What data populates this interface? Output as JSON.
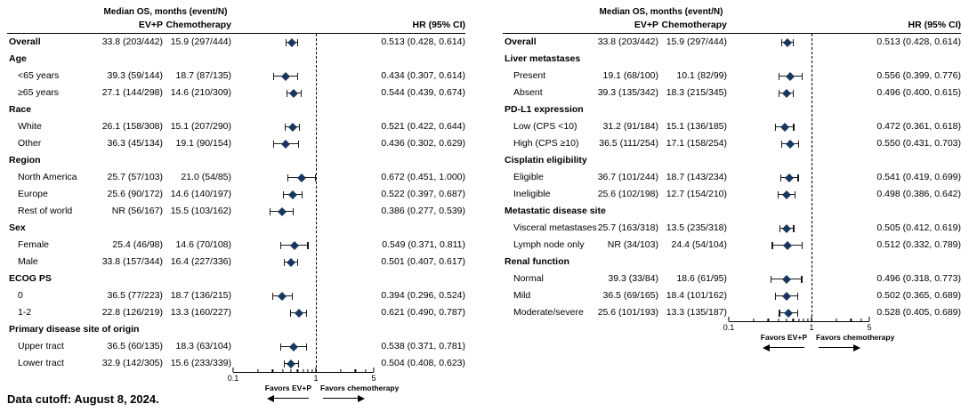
{
  "note": {
    "data_cutoff": "Data cutoff: August 8, 2024."
  },
  "chart_data": {
    "type": "forest",
    "marker_color": "#17375e",
    "axis_color": "#000000",
    "header": {
      "group": "Median OS, months (event/N)",
      "col1": "EV+P",
      "col2": "Chemotherapy",
      "hr": "HR (95% CI)"
    },
    "axis": {
      "scale": "log",
      "range": [
        0.1,
        5
      ],
      "reference_line": 1,
      "major_ticks": [
        0.1,
        1,
        5
      ],
      "tick_labels": [
        "0.1",
        "1",
        "5"
      ],
      "minor_ticks": [
        0.2,
        0.3,
        0.4,
        0.5,
        0.6,
        0.7,
        0.8,
        0.9,
        2,
        3,
        4
      ],
      "left_label": "Favors EV+P",
      "right_label": "Favors chemotherapy"
    },
    "panels": [
      {
        "name": "left",
        "rows": [
          {
            "label": "Overall",
            "bold": true,
            "evp": "33.8 (203/442)",
            "chemo": "15.9 (297/444)",
            "hr": 0.513,
            "ci": [
              0.428,
              0.614
            ]
          },
          {
            "section": "Age"
          },
          {
            "label": "<65 years",
            "evp": "39.3 (59/144)",
            "chemo": "18.7 (87/135)",
            "hr": 0.434,
            "ci": [
              0.307,
              0.614
            ]
          },
          {
            "label": "≥65 years",
            "evp": "27.1 (144/298)",
            "chemo": "14.6 (210/309)",
            "hr": 0.544,
            "ci": [
              0.439,
              0.674
            ]
          },
          {
            "section": "Race"
          },
          {
            "label": "White",
            "evp": "26.1 (158/308)",
            "chemo": "15.1 (207/290)",
            "hr": 0.521,
            "ci": [
              0.422,
              0.644
            ]
          },
          {
            "label": "Other",
            "evp": "36.3 (45/134)",
            "chemo": "19.1 (90/154)",
            "hr": 0.436,
            "ci": [
              0.302,
              0.629
            ]
          },
          {
            "section": "Region"
          },
          {
            "label": "North America",
            "evp": "25.7 (57/103)",
            "chemo": "21.0 (54/85)",
            "hr": 0.672,
            "ci": [
              0.451,
              1.0
            ]
          },
          {
            "label": "Europe",
            "evp": "25.6 (90/172)",
            "chemo": "14.6 (140/197)",
            "hr": 0.522,
            "ci": [
              0.397,
              0.687
            ]
          },
          {
            "label": "Rest of world",
            "evp": "NR (56/167)",
            "chemo": "15.5 (103/162)",
            "hr": 0.386,
            "ci": [
              0.277,
              0.539
            ]
          },
          {
            "section": "Sex"
          },
          {
            "label": "Female",
            "evp": "25.4 (46/98)",
            "chemo": "14.6 (70/108)",
            "hr": 0.549,
            "ci": [
              0.371,
              0.811
            ]
          },
          {
            "label": "Male",
            "evp": "33.8 (157/344)",
            "chemo": "16.4 (227/336)",
            "hr": 0.501,
            "ci": [
              0.407,
              0.617
            ]
          },
          {
            "section": "ECOG PS"
          },
          {
            "label": "0",
            "evp": "36.5 (77/223)",
            "chemo": "18.7 (136/215)",
            "hr": 0.394,
            "ci": [
              0.296,
              0.524
            ]
          },
          {
            "label": "1-2",
            "evp": "22.8 (126/219)",
            "chemo": "13.3 (160/227)",
            "hr": 0.621,
            "ci": [
              0.49,
              0.787
            ]
          },
          {
            "section": "Primary disease site of origin"
          },
          {
            "label": "Upper tract",
            "evp": "36.5 (60/135)",
            "chemo": "18.3 (63/104)",
            "hr": 0.538,
            "ci": [
              0.371,
              0.781
            ]
          },
          {
            "label": "Lower tract",
            "evp": "32.9 (142/305)",
            "chemo": "15.6 (233/339)",
            "hr": 0.504,
            "ci": [
              0.408,
              0.623
            ]
          }
        ]
      },
      {
        "name": "right",
        "rows": [
          {
            "label": "Overall",
            "bold": true,
            "evp": "33.8 (203/442)",
            "chemo": "15.9 (297/444)",
            "hr": 0.513,
            "ci": [
              0.428,
              0.614
            ]
          },
          {
            "section": "Liver metastases"
          },
          {
            "label": "Present",
            "evp": "19.1 (68/100)",
            "chemo": "10.1 (82/99)",
            "hr": 0.556,
            "ci": [
              0.399,
              0.776
            ]
          },
          {
            "label": "Absent",
            "evp": "39.3 (135/342)",
            "chemo": "18.3 (215/345)",
            "hr": 0.496,
            "ci": [
              0.4,
              0.615
            ]
          },
          {
            "section": "PD-L1 expression"
          },
          {
            "label": "Low (CPS <10)",
            "evp": "31.2 (91/184)",
            "chemo": "15.1 (136/185)",
            "hr": 0.472,
            "ci": [
              0.361,
              0.618
            ]
          },
          {
            "label": "High (CPS ≥10)",
            "evp": "36.5 (111/254)",
            "chemo": "17.1 (158/254)",
            "hr": 0.55,
            "ci": [
              0.431,
              0.703
            ]
          },
          {
            "section": "Cisplatin eligibility"
          },
          {
            "label": "Eligible",
            "evp": "36.7 (101/244)",
            "chemo": "18.7 (143/234)",
            "hr": 0.541,
            "ci": [
              0.419,
              0.699
            ]
          },
          {
            "label": "Ineligible",
            "evp": "25.6 (102/198)",
            "chemo": "12.7 (154/210)",
            "hr": 0.498,
            "ci": [
              0.386,
              0.642
            ]
          },
          {
            "section": "Metastatic disease site"
          },
          {
            "label": "Visceral metastases",
            "evp": "25.7 (163/318)",
            "chemo": "13.5 (235/318)",
            "hr": 0.505,
            "ci": [
              0.412,
              0.619
            ]
          },
          {
            "label": "Lymph node only",
            "evp": "NR (34/103)",
            "chemo": "24.4 (54/104)",
            "hr": 0.512,
            "ci": [
              0.332,
              0.789
            ]
          },
          {
            "section": "Renal function"
          },
          {
            "label": "Normal",
            "evp": "39.3 (33/84)",
            "chemo": "18.6 (61/95)",
            "hr": 0.496,
            "ci": [
              0.318,
              0.773
            ]
          },
          {
            "label": "Mild",
            "evp": "36.5 (69/165)",
            "chemo": "18.4 (101/162)",
            "hr": 0.502,
            "ci": [
              0.365,
              0.689
            ]
          },
          {
            "label": "Moderate/severe",
            "evp": "25.6 (101/193)",
            "chemo": "13.3 (135/187)",
            "hr": 0.528,
            "ci": [
              0.405,
              0.689
            ]
          }
        ]
      }
    ]
  }
}
